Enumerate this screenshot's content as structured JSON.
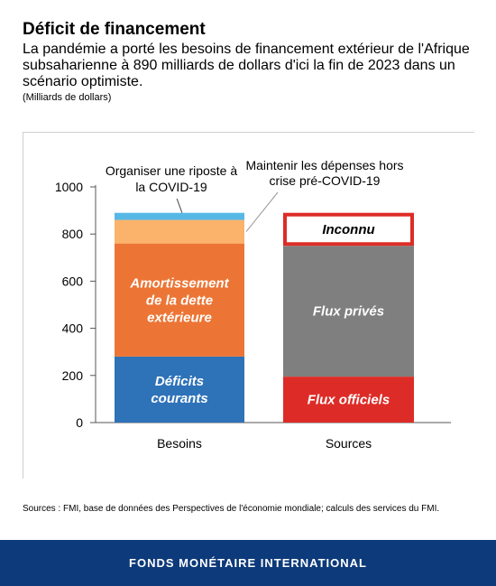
{
  "header": {
    "title": "Déficit de financement",
    "subtitle": "La pandémie a porté les besoins de financement extérieur de l'Afrique subsaharienne à 890 milliards de dollars d'ici la fin de 2023 dans un scénario optimiste.",
    "units": "(Milliards de dollars)"
  },
  "chart_data": {
    "type": "bar",
    "stacked": true,
    "categories": [
      "Besoins",
      "Sources"
    ],
    "ylim": [
      0,
      1000
    ],
    "yticks": [
      0,
      200,
      400,
      600,
      800,
      1000
    ],
    "grid": false,
    "series": [
      {
        "name": "Déficits courants",
        "category": "Besoins",
        "label_lines": [
          "Déficits",
          "courants"
        ],
        "value": 280,
        "color": "#2e72b8",
        "text_color": "#ffffff"
      },
      {
        "name": "Amortissement de la dette extérieure",
        "category": "Besoins",
        "label_lines": [
          "Amortissement",
          "de la dette",
          "extérieure"
        ],
        "value": 480,
        "color": "#ec7535",
        "text_color": "#ffffff"
      },
      {
        "name": "Maintenir les dépenses hors crise pré-COVID-19",
        "category": "Besoins",
        "label_lines": [],
        "value": 100,
        "color": "#fbb36b",
        "text_color": "#000000"
      },
      {
        "name": "Organiser une riposte à la COVID-19",
        "category": "Besoins",
        "label_lines": [],
        "value": 30,
        "color": "#57b8e6",
        "text_color": "#000000"
      },
      {
        "name": "Flux officiels",
        "category": "Sources",
        "label_lines": [
          "Flux officiels"
        ],
        "value": 195,
        "color": "#dd2c27",
        "text_color": "#ffffff"
      },
      {
        "name": "Flux privés",
        "category": "Sources",
        "label_lines": [
          "Flux privés"
        ],
        "value": 555,
        "color": "#7f7f7f",
        "text_color": "#ffffff"
      },
      {
        "name": "Inconnu",
        "category": "Sources",
        "label_lines": [
          "Inconnu"
        ],
        "value": 140,
        "color": "#ffffff",
        "outline": "#dd2c27",
        "text_color": "#000000"
      }
    ],
    "annotations": [
      {
        "lines": [
          "Organiser une riposte à",
          "la COVID-19"
        ],
        "target": "Organiser une riposte à la COVID-19"
      },
      {
        "lines": [
          "Maintenir les dépenses hors",
          "crise pré-COVID-19"
        ],
        "target": "Maintenir les dépenses hors crise pré-COVID-19"
      }
    ]
  },
  "source_note": "Sources : FMI, base de données des Perspectives de l'économie mondiale; calculs des services du FMI.",
  "footer": {
    "label": "FONDS MONÉTAIRE INTERNATIONAL",
    "color": "#0d3a7a"
  }
}
